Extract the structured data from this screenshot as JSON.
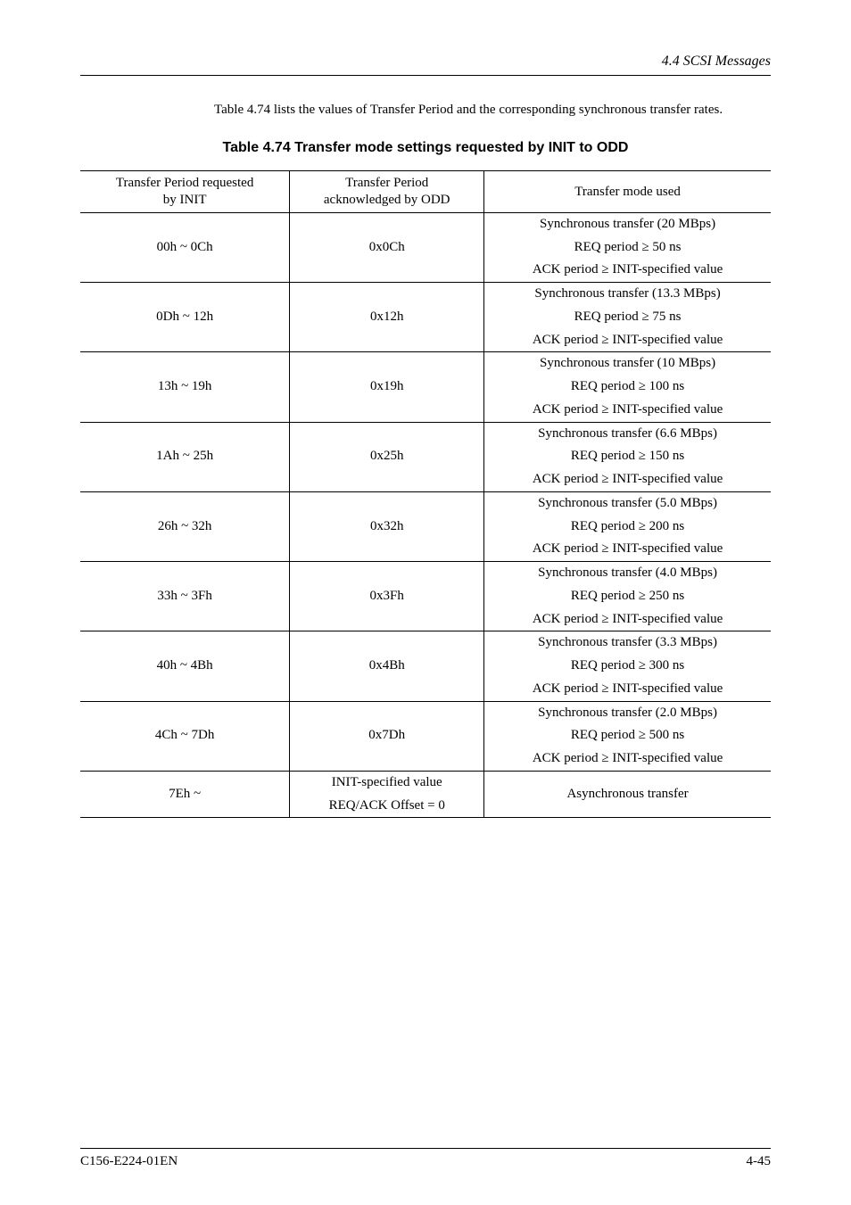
{
  "header": {
    "section": "4.4  SCSI Messages"
  },
  "intro": "Table 4.74 lists the values of Transfer Period and the corresponding synchronous transfer rates.",
  "table": {
    "caption": "Table 4.74  Transfer mode settings requested by INIT to ODD",
    "col1_header_l1": "Transfer Period requested",
    "col1_header_l2": "by INIT",
    "col2_header_l1": "Transfer Period",
    "col2_header_l2": "acknowledged by ODD",
    "col3_header": "Transfer mode used",
    "rows": [
      {
        "req": "00h ~ 0Ch",
        "ack": "0x0Ch",
        "l1": "Synchronous transfer (20 MBps)",
        "l2": "REQ period ≥ 50 ns",
        "l3": "ACK period ≥ INIT-specified value"
      },
      {
        "req": "0Dh ~ 12h",
        "ack": "0x12h",
        "l1": "Synchronous transfer (13.3 MBps)",
        "l2": "REQ period ≥ 75 ns",
        "l3": "ACK period ≥ INIT-specified value"
      },
      {
        "req": "13h ~ 19h",
        "ack": "0x19h",
        "l1": "Synchronous transfer (10 MBps)",
        "l2": "REQ period ≥ 100 ns",
        "l3": "ACK period ≥ INIT-specified value"
      },
      {
        "req": "1Ah ~ 25h",
        "ack": "0x25h",
        "l1": "Synchronous transfer (6.6 MBps)",
        "l2": "REQ period ≥ 150 ns",
        "l3": "ACK period ≥ INIT-specified value"
      },
      {
        "req": "26h ~ 32h",
        "ack": "0x32h",
        "l1": "Synchronous transfer (5.0 MBps)",
        "l2": "REQ period ≥ 200 ns",
        "l3": "ACK period ≥ INIT-specified value"
      },
      {
        "req": "33h ~ 3Fh",
        "ack": "0x3Fh",
        "l1": "Synchronous transfer (4.0 MBps)",
        "l2": "REQ period ≥ 250 ns",
        "l3": "ACK period ≥ INIT-specified value"
      },
      {
        "req": "40h ~ 4Bh",
        "ack": "0x4Bh",
        "l1": "Synchronous transfer (3.3 MBps)",
        "l2": "REQ period ≥ 300 ns",
        "l3": "ACK period ≥ INIT-specified value"
      },
      {
        "req": "4Ch ~ 7Dh",
        "ack": "0x7Dh",
        "l1": "Synchronous transfer (2.0 MBps)",
        "l2": "REQ period ≥ 500 ns",
        "l3": "ACK period ≥ INIT-specified value"
      }
    ],
    "final": {
      "req": "7Eh ~",
      "ack_l1": "INIT-specified value",
      "ack_l2": "REQ/ACK Offset = 0",
      "mode": "Asynchronous transfer"
    }
  },
  "footer": {
    "left": "C156-E224-01EN",
    "right": "4-45"
  }
}
